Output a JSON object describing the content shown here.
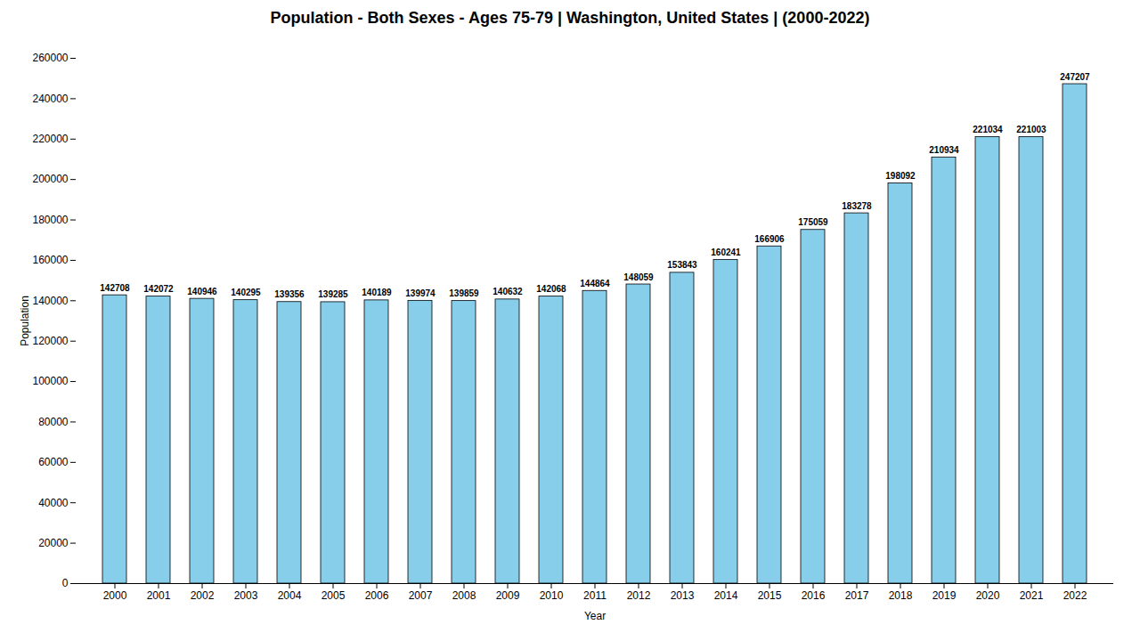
{
  "chart_data": {
    "type": "bar",
    "title": "Population - Both Sexes - Ages 75-79 | Washington, United States |  (2000-2022)",
    "xlabel": "Year",
    "ylabel": "Population",
    "categories": [
      "2000",
      "2001",
      "2002",
      "2003",
      "2004",
      "2005",
      "2006",
      "2007",
      "2008",
      "2009",
      "2010",
      "2011",
      "2012",
      "2013",
      "2014",
      "2015",
      "2016",
      "2017",
      "2018",
      "2019",
      "2020",
      "2021",
      "2022"
    ],
    "values": [
      142708,
      142072,
      140946,
      140295,
      139356,
      139285,
      140189,
      139974,
      139859,
      140632,
      142068,
      144864,
      148059,
      153843,
      160241,
      166906,
      175059,
      183278,
      198092,
      210934,
      221034,
      221003,
      247207
    ],
    "color": "#87CEEB",
    "ylim": [
      0,
      260000
    ],
    "yticks": [
      0,
      20000,
      40000,
      60000,
      80000,
      100000,
      120000,
      140000,
      160000,
      180000,
      200000,
      220000,
      240000,
      260000
    ],
    "data_labels": true,
    "grid": false
  }
}
